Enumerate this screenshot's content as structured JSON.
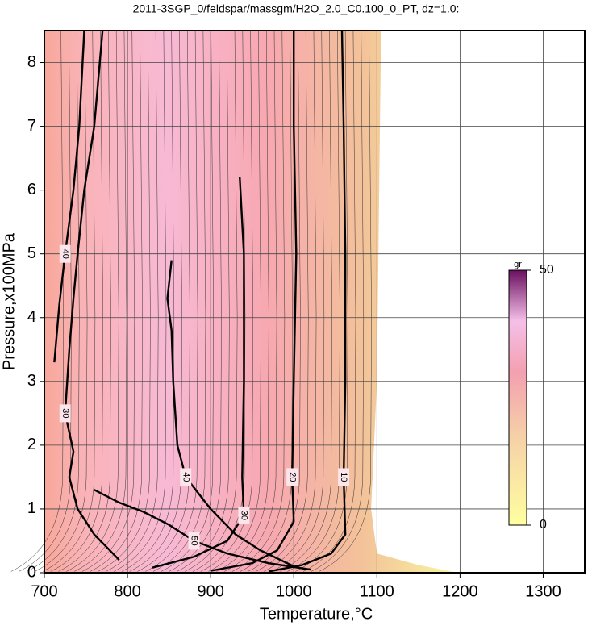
{
  "chart_data": {
    "type": "contour",
    "title": "2011-3SGP_0/feldspar/massgm/H2O_2.0_C0.100_0_PT, dz=1.0:",
    "x_label": "Temperature,°C",
    "y_label": "Pressure,x100MPa",
    "xlim": [
      700,
      1350
    ],
    "ylim": [
      0,
      8.5
    ],
    "xticks": [
      700,
      800,
      900,
      1000,
      1100,
      1200,
      1300
    ],
    "yticks": [
      0,
      1,
      2,
      3,
      4,
      5,
      6,
      7,
      8
    ],
    "grid": true,
    "contours": [
      {
        "level": 10,
        "x": [
          1058,
          1060,
          1062,
          1062,
          1060,
          1062,
          1045,
          1010,
          970
        ],
        "y": [
          8.5,
          7,
          5,
          3,
          1.5,
          0.6,
          0.3,
          0.12,
          0.02
        ]
      },
      {
        "level": 20,
        "x": [
          1000,
          1000,
          1003,
          1000,
          998,
          1000,
          980,
          950,
          900
        ],
        "y": [
          8.5,
          7,
          5,
          3,
          1.5,
          0.8,
          0.35,
          0.15,
          0.03
        ]
      },
      {
        "level": 30,
        "x": [
          935,
          940,
          940,
          938,
          940,
          920,
          880,
          830
        ],
        "y": [
          6.2,
          5,
          3,
          1.5,
          0.9,
          0.5,
          0.25,
          0.08
        ]
      },
      {
        "level": 30,
        "x": [
          770,
          760,
          748,
          740,
          735,
          730,
          725,
          735,
          730,
          740,
          760,
          790
        ],
        "y": [
          8.5,
          7,
          6,
          5,
          4.3,
          3.5,
          2.5,
          1.9,
          1.5,
          1.0,
          0.6,
          0.2
        ]
      },
      {
        "level": 40,
        "x": [
          853,
          848,
          853,
          855,
          860,
          870,
          900,
          930,
          960,
          1000
        ],
        "y": [
          4.9,
          4.3,
          3.8,
          3,
          2,
          1.5,
          1,
          0.6,
          0.35,
          0.1
        ]
      },
      {
        "level": 40,
        "x": [
          748,
          742,
          735,
          725,
          718,
          712
        ],
        "y": [
          8.5,
          7,
          6,
          5,
          4.2,
          3.3
        ]
      },
      {
        "level": 50,
        "x": [
          760,
          790,
          820,
          850,
          880,
          920,
          970,
          1020
        ],
        "y": [
          1.3,
          1.1,
          0.95,
          0.75,
          0.5,
          0.3,
          0.15,
          0.05
        ]
      }
    ],
    "colorbar": {
      "label": "gr",
      "lim": [
        0,
        50
      ],
      "ticks": [
        0,
        50
      ]
    }
  }
}
